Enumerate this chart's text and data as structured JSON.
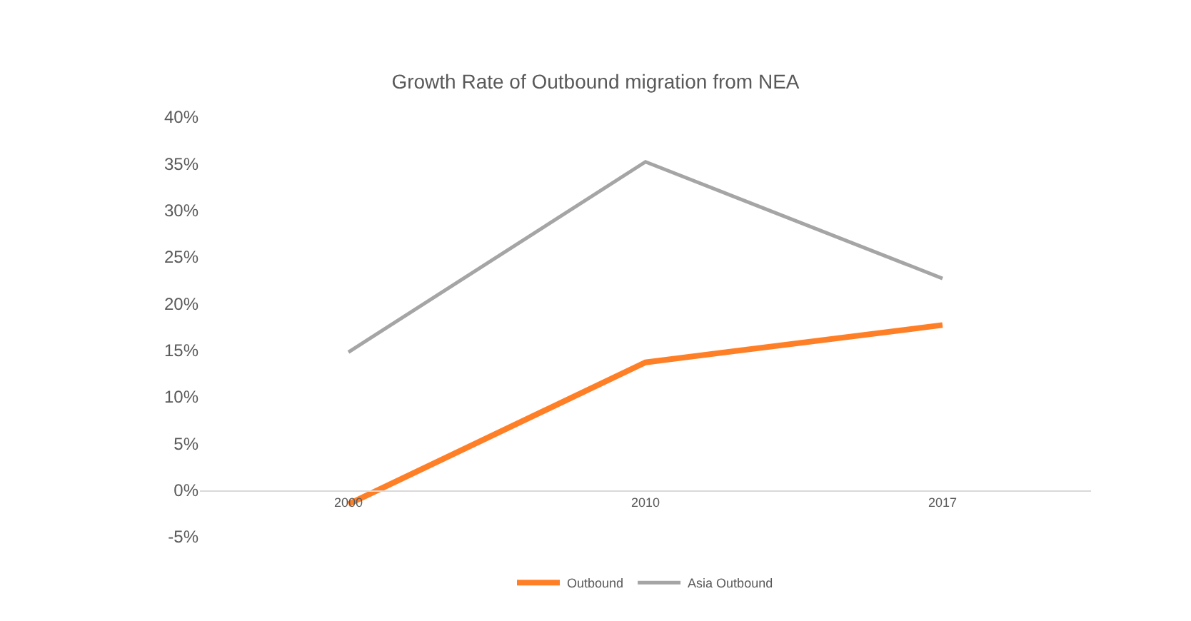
{
  "chart_data": {
    "type": "line",
    "title": "Growth Rate of Outbound migration from NEA",
    "categories": [
      "2000",
      "2010",
      "2017"
    ],
    "series": [
      {
        "name": "Outbound",
        "color": "#ff7f27",
        "values": [
          -1.5,
          13.7,
          17.7
        ]
      },
      {
        "name": "Asia Outbound",
        "color": "#a5a5a5",
        "values": [
          14.8,
          35.2,
          22.7
        ]
      }
    ],
    "ylim": [
      -5,
      40
    ],
    "yticks": [
      {
        "value": -5,
        "label": "-5%"
      },
      {
        "value": 0,
        "label": "0%"
      },
      {
        "value": 5,
        "label": "5%"
      },
      {
        "value": 10,
        "label": "10%"
      },
      {
        "value": 15,
        "label": "15%"
      },
      {
        "value": 20,
        "label": "20%"
      },
      {
        "value": 25,
        "label": "25%"
      },
      {
        "value": 30,
        "label": "30%"
      },
      {
        "value": 35,
        "label": "35%"
      },
      {
        "value": 40,
        "label": "40%"
      }
    ],
    "legend": "bottom",
    "marker": "none",
    "line_style": "solid"
  }
}
